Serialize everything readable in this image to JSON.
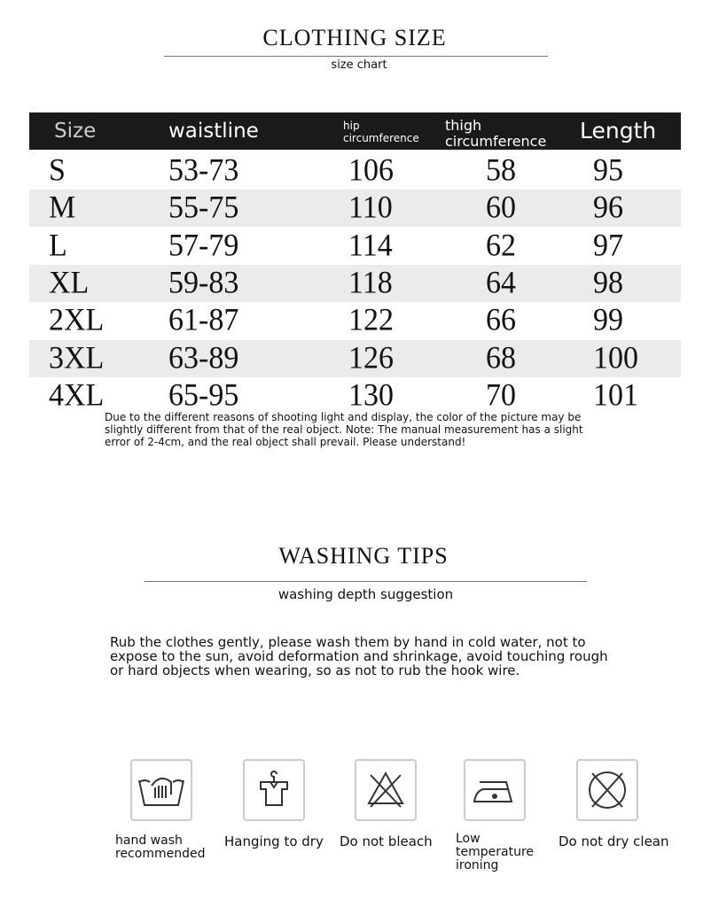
{
  "size_section": {
    "title": "CLOTHING SIZE",
    "subtitle": "size chart"
  },
  "table": {
    "headers": [
      "Size",
      "waistline",
      "hip circumference",
      "thigh circumference",
      "Length"
    ],
    "rows": [
      [
        "S",
        "53-73",
        "106",
        "58",
        "95"
      ],
      [
        "M",
        "55-75",
        "110",
        "60",
        "96"
      ],
      [
        "L",
        "57-79",
        "114",
        "62",
        "97"
      ],
      [
        "XL",
        "59-83",
        "118",
        "64",
        "98"
      ],
      [
        "2XL",
        "61-87",
        "122",
        "66",
        "99"
      ],
      [
        "3XL",
        "63-89",
        "126",
        "68",
        "100"
      ],
      [
        "4XL",
        "65-95",
        "130",
        "70",
        "101"
      ]
    ]
  },
  "note": "Due to the different reasons of shooting light and display, the color of the picture may be slightly different from that of the real object. Note: The manual measurement has a slight error of 2-4cm, and the real object shall prevail. Please understand!",
  "washing_section": {
    "title": "WASHING TIPS",
    "subtitle": "washing depth suggestion",
    "description": "Rub the clothes gently, please wash them by hand in cold water, not to expose to the sun, avoid deformation and shrinkage, avoid touching rough or hard objects when wearing, so as not to rub the hook wire."
  },
  "care_icons": [
    {
      "icon": "hand-wash-icon",
      "label": "hand wash recommended"
    },
    {
      "icon": "hang-dry-icon",
      "label": "Hanging to dry"
    },
    {
      "icon": "no-bleach-icon",
      "label": "Do not bleach"
    },
    {
      "icon": "low-iron-icon",
      "label": "Low temperature ironing"
    },
    {
      "icon": "no-dry-clean-icon",
      "label": "Do not dry clean"
    }
  ]
}
